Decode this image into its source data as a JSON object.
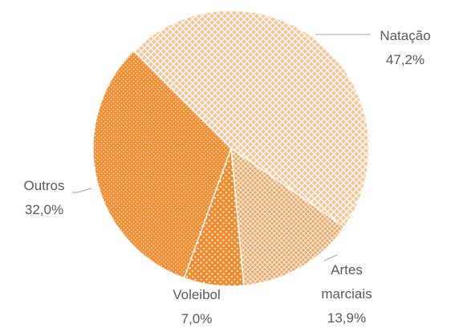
{
  "chart_data": {
    "type": "pie",
    "categories": [
      "Natação",
      "Artes marciais",
      "Voleibol",
      "Outros"
    ],
    "values": [
      47.2,
      13.9,
      7.0,
      32.0
    ],
    "value_labels": [
      "47,2%",
      "13,9%",
      "7,0%",
      "32,0%"
    ],
    "colors": [
      "#fbc495",
      "#f7a35c",
      "#f58a2a",
      "#f58a2a"
    ]
  }
}
